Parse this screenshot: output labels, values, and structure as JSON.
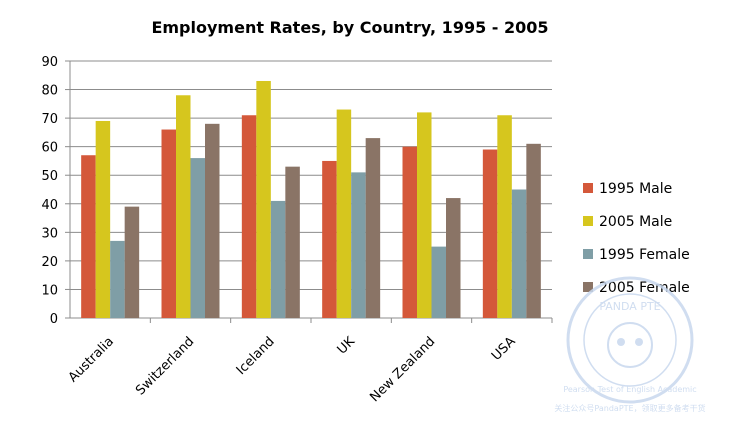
{
  "chart_data": {
    "type": "bar",
    "title": "Employment Rates, by Country, 1995  - 2005",
    "categories": [
      "Australia",
      "Switzerland",
      "Iceland",
      "UK",
      "New Zealand",
      "USA"
    ],
    "series": [
      {
        "name": "1995 Male",
        "color": "#d4583a",
        "values": [
          57,
          66,
          71,
          55,
          60,
          59
        ]
      },
      {
        "name": "2005 Male",
        "color": "#d6c61e",
        "values": [
          69,
          78,
          83,
          73,
          72,
          71
        ]
      },
      {
        "name": "1995 Female",
        "color": "#7f9ea6",
        "values": [
          27,
          56,
          41,
          51,
          25,
          45
        ]
      },
      {
        "name": "2005 Female",
        "color": "#8a7466",
        "values": [
          39,
          68,
          53,
          63,
          42,
          61
        ]
      }
    ],
    "ylim": [
      0,
      90
    ],
    "yticks": [
      0,
      10,
      20,
      30,
      40,
      50,
      60,
      70,
      80,
      90
    ],
    "grid": true,
    "legend_position": "right"
  },
  "watermark": {
    "brand": "PANDA PTE",
    "ring_text": "Pearson Test of English Academic",
    "footer": "关注公众号PandaPTE，领取更多备考干货"
  }
}
